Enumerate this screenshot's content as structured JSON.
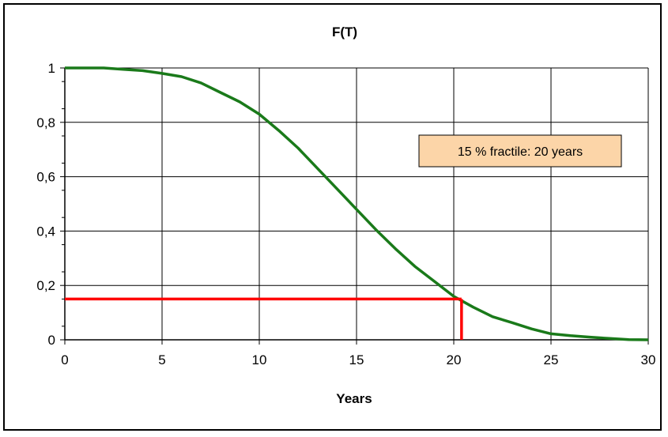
{
  "chart_data": {
    "type": "line",
    "title": "F(T)",
    "xlabel": "Years",
    "ylabel": "",
    "xlim": [
      0,
      30
    ],
    "ylim": [
      0,
      1
    ],
    "x_ticks": [
      "0",
      "5",
      "10",
      "15",
      "20",
      "25",
      "30"
    ],
    "y_ticks": [
      "0",
      "0,2",
      "0,4",
      "0,6",
      "0,8",
      "1"
    ],
    "grid": true,
    "legend": "none",
    "series": [
      {
        "color": "#1a7a1a",
        "x": [
          0,
          1,
          2,
          3,
          4,
          5,
          6,
          7,
          8,
          9,
          10,
          11,
          12,
          13,
          14,
          15,
          16,
          17,
          18,
          19,
          20,
          21,
          22,
          23,
          24,
          25,
          26,
          27,
          28,
          29,
          30
        ],
        "y": [
          1.0,
          1.0,
          1.0,
          0.995,
          0.99,
          0.98,
          0.968,
          0.945,
          0.91,
          0.875,
          0.83,
          0.77,
          0.705,
          0.63,
          0.555,
          0.48,
          0.405,
          0.335,
          0.27,
          0.215,
          0.16,
          0.12,
          0.085,
          0.063,
          0.04,
          0.022,
          0.015,
          0.01,
          0.005,
          0.001,
          0.0
        ]
      }
    ],
    "fractile": {
      "x": 20.4,
      "y": 0.15,
      "color": "#ff0000"
    },
    "annotation": {
      "text": "15 % fractile: 20 years",
      "x": 22.5,
      "y": 0.705,
      "bg": "#fcd5a8"
    },
    "colors": {
      "grid": "#000000",
      "plot_bg": "#ffffff"
    }
  }
}
